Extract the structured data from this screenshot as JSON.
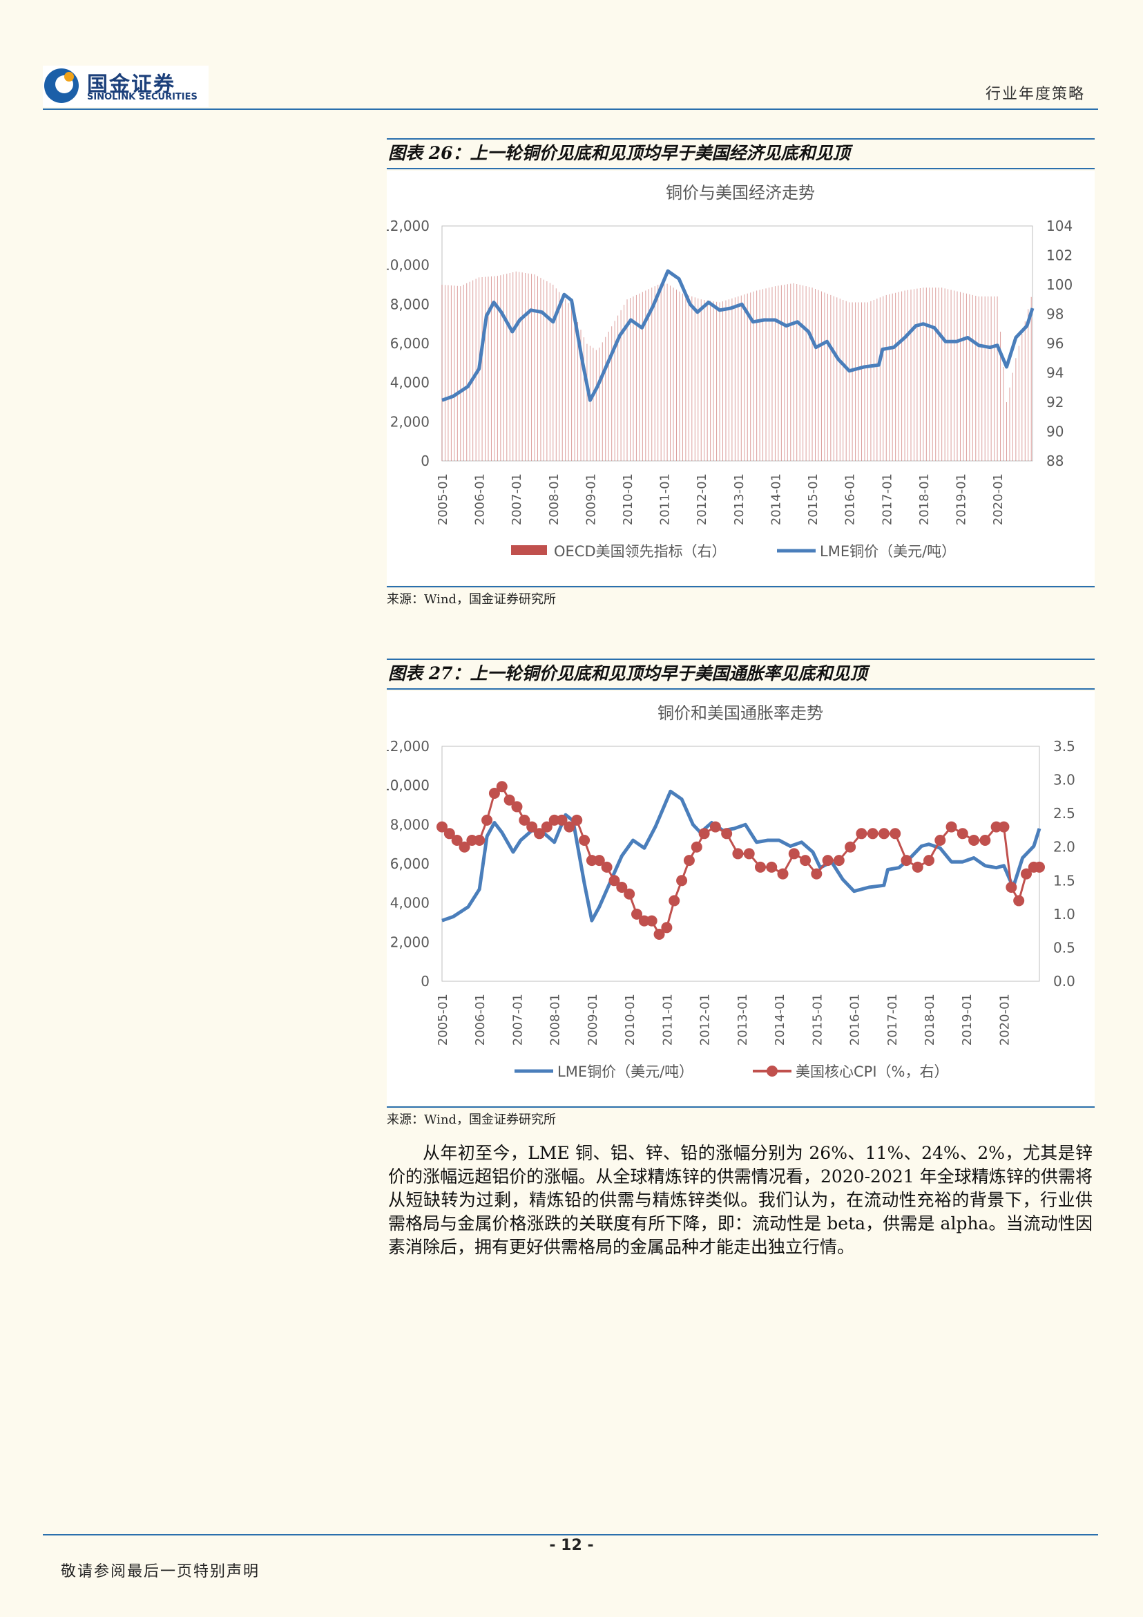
{
  "header": {
    "logo_cn": "国金证券",
    "logo_en": "SINOLINK SECURITIES",
    "doc_type": "行业年度策略"
  },
  "figure26": {
    "caption": "图表 26：上一轮铜价见底和见顶均早于美国经济见底和见顶",
    "source": "来源：Wind，国金证券研究所"
  },
  "figure27": {
    "caption": "图表 27：上一轮铜价见底和见顶均早于美国通胀率见底和见顶",
    "source": "来源：Wind，国金证券研究所"
  },
  "chart_data": [
    {
      "type": "line",
      "title": "铜价与美国经济走势",
      "x_ticks": [
        "2005-01",
        "2006-01",
        "2007-01",
        "2008-01",
        "2009-01",
        "2010-01",
        "2011-01",
        "2012-01",
        "2013-01",
        "2014-01",
        "2015-01",
        "2016-01",
        "2017-01",
        "2018-01",
        "2019-01",
        "2020-01"
      ],
      "x_range": [
        2005.0,
        2020.95
      ],
      "y_left": {
        "range": [
          0,
          12000
        ],
        "ticks": [
          "0",
          "2,000",
          "4,000",
          "6,000",
          "8,000",
          "10,000",
          "12,000"
        ]
      },
      "y_right": {
        "range": [
          88,
          104
        ],
        "ticks": [
          "88",
          "90",
          "92",
          "94",
          "96",
          "98",
          "100",
          "102",
          "104"
        ]
      },
      "legend_position": "bottom",
      "series": [
        {
          "name": "OECD美国领先指标（右）",
          "kind": "bar",
          "axis": "right",
          "color": "#c0504d",
          "x": [
            2005.0,
            2005.5,
            2006.0,
            2006.5,
            2007.0,
            2007.5,
            2008.0,
            2008.5,
            2008.9,
            2009.2,
            2009.5,
            2010.0,
            2010.5,
            2011.0,
            2011.5,
            2012.0,
            2012.5,
            2013.0,
            2013.5,
            2014.0,
            2014.5,
            2015.0,
            2015.5,
            2016.0,
            2016.5,
            2017.0,
            2017.5,
            2018.0,
            2018.5,
            2019.0,
            2019.5,
            2020.0,
            2020.25,
            2020.5,
            2020.95
          ],
          "values": [
            100.0,
            99.9,
            100.5,
            100.6,
            100.9,
            100.7,
            100.0,
            98.5,
            96.0,
            95.5,
            96.8,
            99.0,
            99.6,
            100.2,
            99.4,
            99.0,
            98.8,
            99.2,
            99.6,
            99.9,
            100.1,
            99.8,
            99.3,
            98.8,
            98.8,
            99.3,
            99.6,
            99.8,
            99.8,
            99.5,
            99.2,
            99.2,
            92.0,
            95.0,
            99.5
          ]
        },
        {
          "name": "LME铜价（美元/吨）",
          "kind": "line",
          "axis": "left",
          "color": "#4a7ebb",
          "x": [
            2005.0,
            2005.3,
            2005.7,
            2006.0,
            2006.2,
            2006.4,
            2006.6,
            2006.9,
            2007.1,
            2007.4,
            2007.7,
            2008.0,
            2008.3,
            2008.5,
            2008.8,
            2009.0,
            2009.2,
            2009.5,
            2009.8,
            2010.1,
            2010.4,
            2010.7,
            2011.1,
            2011.4,
            2011.7,
            2011.9,
            2012.2,
            2012.5,
            2012.8,
            2013.1,
            2013.4,
            2013.7,
            2014.0,
            2014.3,
            2014.6,
            2014.9,
            2015.1,
            2015.4,
            2015.7,
            2016.0,
            2016.4,
            2016.8,
            2016.9,
            2017.2,
            2017.5,
            2017.8,
            2018.0,
            2018.3,
            2018.6,
            2018.9,
            2019.2,
            2019.5,
            2019.8,
            2020.0,
            2020.25,
            2020.5,
            2020.8,
            2020.95
          ],
          "values": [
            3100,
            3300,
            3800,
            4700,
            7400,
            8100,
            7600,
            6600,
            7200,
            7700,
            7600,
            7100,
            8500,
            8200,
            5000,
            3100,
            3800,
            5100,
            6400,
            7200,
            6800,
            7900,
            9700,
            9300,
            8000,
            7600,
            8100,
            7700,
            7800,
            8000,
            7100,
            7200,
            7200,
            6900,
            7100,
            6600,
            5800,
            6100,
            5200,
            4600,
            4800,
            4900,
            5700,
            5800,
            6300,
            6900,
            7000,
            6800,
            6100,
            6100,
            6300,
            5900,
            5800,
            5900,
            4800,
            6300,
            6900,
            7800
          ]
        }
      ]
    },
    {
      "type": "line",
      "title": "铜价和美国通胀率走势",
      "x_ticks": [
        "2005-01",
        "2006-01",
        "2007-01",
        "2008-01",
        "2009-01",
        "2010-01",
        "2011-01",
        "2012-01",
        "2013-01",
        "2014-01",
        "2015-01",
        "2016-01",
        "2017-01",
        "2018-01",
        "2019-01",
        "2020-01"
      ],
      "x_range": [
        2005.0,
        2020.95
      ],
      "y_left": {
        "range": [
          0,
          12000
        ],
        "ticks": [
          "0",
          "2,000",
          "4,000",
          "6,000",
          "8,000",
          "10,000",
          "12,000"
        ]
      },
      "y_right": {
        "range": [
          0.0,
          3.5
        ],
        "ticks": [
          "0.0",
          "0.5",
          "1.0",
          "1.5",
          "2.0",
          "2.5",
          "3.0",
          "3.5"
        ]
      },
      "legend_position": "bottom",
      "series": [
        {
          "name": "LME铜价（美元/吨）",
          "kind": "line",
          "axis": "left",
          "color": "#4a7ebb",
          "x": [
            2005.0,
            2005.3,
            2005.7,
            2006.0,
            2006.2,
            2006.4,
            2006.6,
            2006.9,
            2007.1,
            2007.4,
            2007.7,
            2008.0,
            2008.3,
            2008.5,
            2008.8,
            2009.0,
            2009.2,
            2009.5,
            2009.8,
            2010.1,
            2010.4,
            2010.7,
            2011.1,
            2011.4,
            2011.7,
            2011.9,
            2012.2,
            2012.5,
            2012.8,
            2013.1,
            2013.4,
            2013.7,
            2014.0,
            2014.3,
            2014.6,
            2014.9,
            2015.1,
            2015.4,
            2015.7,
            2016.0,
            2016.4,
            2016.8,
            2016.9,
            2017.2,
            2017.5,
            2017.8,
            2018.0,
            2018.3,
            2018.6,
            2018.9,
            2019.2,
            2019.5,
            2019.8,
            2020.0,
            2020.25,
            2020.5,
            2020.8,
            2020.95
          ],
          "values": [
            3100,
            3300,
            3800,
            4700,
            7400,
            8100,
            7600,
            6600,
            7200,
            7700,
            7600,
            7100,
            8500,
            8200,
            5000,
            3100,
            3800,
            5100,
            6400,
            7200,
            6800,
            7900,
            9700,
            9300,
            8000,
            7600,
            8100,
            7700,
            7800,
            8000,
            7100,
            7200,
            7200,
            6900,
            7100,
            6600,
            5800,
            6100,
            5200,
            4600,
            4800,
            4900,
            5700,
            5800,
            6300,
            6900,
            7000,
            6800,
            6100,
            6100,
            6300,
            5900,
            5800,
            5900,
            4800,
            6300,
            6900,
            7800
          ]
        },
        {
          "name": "美国核心CPI（%，右）",
          "kind": "line_marker",
          "axis": "right",
          "color": "#c0504d",
          "x": [
            2005.0,
            2005.2,
            2005.4,
            2005.6,
            2005.8,
            2006.0,
            2006.2,
            2006.4,
            2006.6,
            2006.8,
            2007.0,
            2007.2,
            2007.4,
            2007.6,
            2007.8,
            2008.0,
            2008.2,
            2008.4,
            2008.6,
            2008.8,
            2009.0,
            2009.2,
            2009.4,
            2009.6,
            2009.8,
            2010.0,
            2010.2,
            2010.4,
            2010.6,
            2010.8,
            2011.0,
            2011.2,
            2011.4,
            2011.6,
            2011.8,
            2012.0,
            2012.3,
            2012.6,
            2012.9,
            2013.2,
            2013.5,
            2013.8,
            2014.1,
            2014.4,
            2014.7,
            2015.0,
            2015.3,
            2015.6,
            2015.9,
            2016.2,
            2016.5,
            2016.8,
            2017.1,
            2017.4,
            2017.7,
            2018.0,
            2018.3,
            2018.6,
            2018.9,
            2019.2,
            2019.5,
            2019.8,
            2020.0,
            2020.2,
            2020.4,
            2020.6,
            2020.8,
            2020.95
          ],
          "values": [
            2.3,
            2.2,
            2.1,
            2.0,
            2.1,
            2.1,
            2.4,
            2.8,
            2.9,
            2.7,
            2.6,
            2.4,
            2.3,
            2.2,
            2.3,
            2.4,
            2.4,
            2.3,
            2.4,
            2.1,
            1.8,
            1.8,
            1.7,
            1.5,
            1.4,
            1.3,
            1.0,
            0.9,
            0.9,
            0.7,
            0.8,
            1.2,
            1.5,
            1.8,
            2.0,
            2.2,
            2.3,
            2.2,
            1.9,
            1.9,
            1.7,
            1.7,
            1.6,
            1.9,
            1.8,
            1.6,
            1.8,
            1.8,
            2.0,
            2.2,
            2.2,
            2.2,
            2.2,
            1.8,
            1.7,
            1.8,
            2.1,
            2.3,
            2.2,
            2.1,
            2.1,
            2.3,
            2.3,
            1.4,
            1.2,
            1.6,
            1.7,
            1.7
          ]
        }
      ]
    }
  ],
  "body": {
    "paragraph": "从年初至今，LME 铜、铝、锌、铅的涨幅分别为 26%、11%、24%、2%，尤其是锌价的涨幅远超铝价的涨幅。从全球精炼锌的供需情况看，2020-2021 年全球精炼锌的供需将从短缺转为过剩，精炼铅的供需与精炼锌类似。我们认为，在流动性充裕的背景下，行业供需格局与金属价格涨跌的关联度有所下降，即：流动性是 beta，供需是 alpha。当流动性因素消除后，拥有更好供需格局的金属品种才能走出独立行情。"
  },
  "footer": {
    "page_number": "- 12 -",
    "disclaimer": "敬请参阅最后一页特别声明"
  }
}
